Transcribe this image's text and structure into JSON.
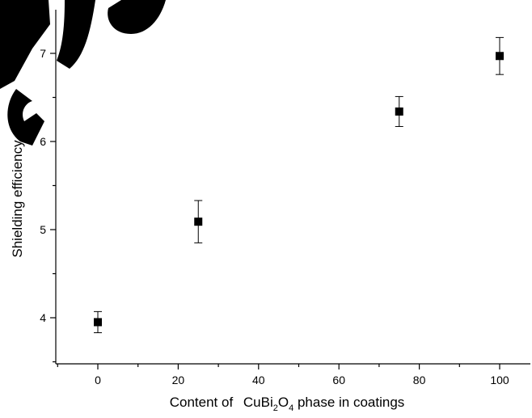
{
  "chart_data": {
    "type": "scatter",
    "xlabel_parts": {
      "prefix": "Content of ",
      "formula_a": "CuBi",
      "sub_a": "2",
      "formula_b": "O",
      "sub_b": "4",
      "suffix": " phase in coatings"
    },
    "ylabel": "Shielding efficiency",
    "xlim": [
      -10,
      108
    ],
    "ylim": [
      3.5,
      7.5
    ],
    "xticks": [
      0,
      20,
      40,
      60,
      80,
      100
    ],
    "yticks": [
      4,
      5,
      6,
      7
    ],
    "grid": false,
    "series": [
      {
        "x": [
          0,
          25,
          75,
          100
        ],
        "y": [
          3.95,
          5.09,
          6.34,
          6.97
        ],
        "yerr": [
          0.12,
          0.24,
          0.17,
          0.21
        ]
      }
    ],
    "marker": "square",
    "color": "#000000"
  }
}
